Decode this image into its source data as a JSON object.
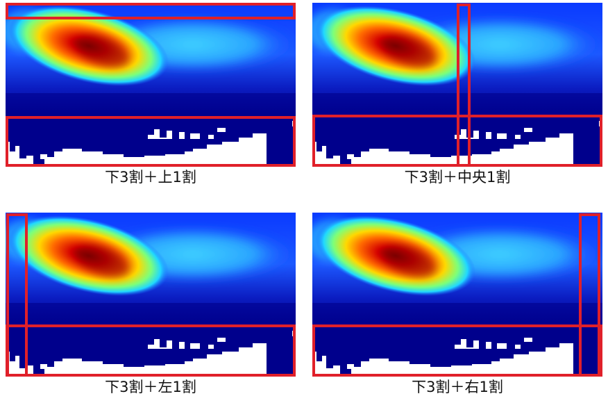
{
  "panels": [
    {
      "caption": "下3割＋上1割"
    },
    {
      "caption": "下3割＋中央1割"
    },
    {
      "caption": "下3割＋左1割"
    },
    {
      "caption": "下3割＋右1割"
    }
  ],
  "colors": {
    "highlight": "#e0202a",
    "background_navy": "#00008c",
    "mask_white": "#ffffff"
  }
}
